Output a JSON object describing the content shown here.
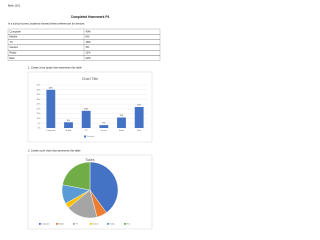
{
  "header": {
    "course": "Math 1101",
    "title": "Completed Homework P4",
    "intro": "In a school survey, students showed these preferences for devices."
  },
  "table": {
    "rows": [
      [
        "Computer",
        "40%"
      ],
      [
        "Mobile",
        "6%"
      ],
      [
        "TV",
        "18%"
      ],
      [
        "Games",
        "3%"
      ],
      [
        "Radio",
        "11%"
      ],
      [
        "Else",
        "22%"
      ]
    ]
  },
  "questions": [
    "1.  Create a bar graph that represents this table",
    "2.  Create a pie chart that represents this table"
  ],
  "chart_data": [
    {
      "type": "bar",
      "title": "Chart Title",
      "categories": [
        "Computer",
        "Mobile",
        "TV",
        "Games",
        "Radio",
        "Else"
      ],
      "series": [
        {
          "name": "Percent",
          "color": "#4472c4",
          "values": [
            40,
            6,
            18,
            3,
            11,
            22
          ],
          "value_labels": [
            "40%",
            "6%",
            "18%",
            "3%",
            "11%",
            "22%"
          ]
        }
      ],
      "ylim": [
        0,
        45
      ],
      "yticks": [
        {
          "value": 0,
          "label": "0%"
        },
        {
          "value": 5,
          "label": "5%"
        },
        {
          "value": 10,
          "label": "10%"
        },
        {
          "value": 15,
          "label": "15%"
        },
        {
          "value": 20,
          "label": "20%"
        },
        {
          "value": 25,
          "label": "25%"
        },
        {
          "value": 30,
          "label": "30%"
        },
        {
          "value": 35,
          "label": "35%"
        },
        {
          "value": 40,
          "label": "40%"
        },
        {
          "value": 45,
          "label": "45%"
        }
      ],
      "grid": true,
      "legend": "bottom"
    },
    {
      "type": "pie",
      "title": "Sales",
      "categories": [
        "Computer",
        "Mobile",
        "TV",
        "Games",
        "Radio",
        "Else"
      ],
      "values": [
        40,
        6,
        18,
        3,
        11,
        22
      ],
      "colors": [
        "#4472c4",
        "#ed7d31",
        "#a5a5a5",
        "#ffc000",
        "#5b9bd5",
        "#70ad47"
      ],
      "legend": "bottom"
    }
  ]
}
